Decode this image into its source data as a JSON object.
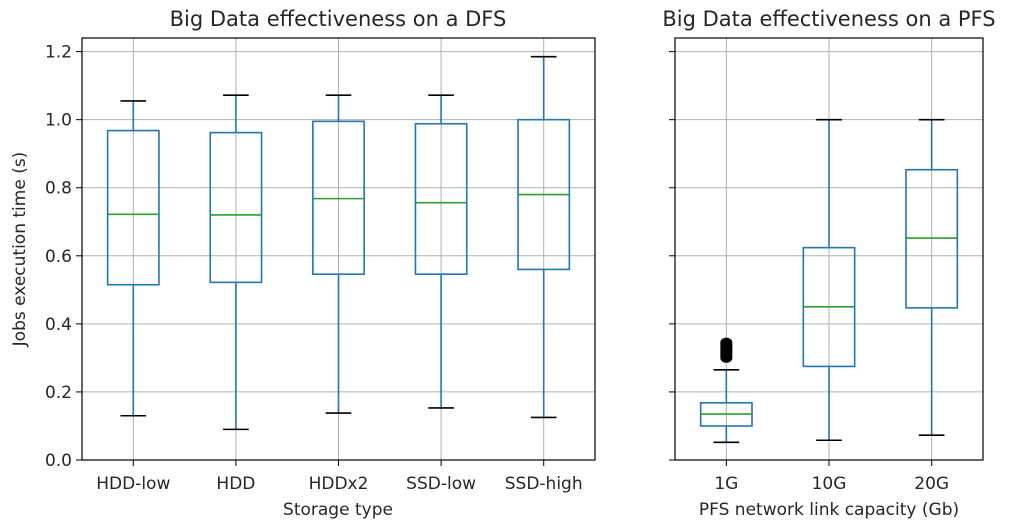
{
  "chart_data": [
    {
      "type": "box",
      "title": "Big Data effectiveness on a DFS",
      "xlabel": "Storage type",
      "ylabel": "Jobs execution time (s)",
      "ylim": [
        0,
        1.24
      ],
      "yticks": [
        "0.0",
        "0.2",
        "0.4",
        "0.6",
        "0.8",
        "1.0",
        "1.2"
      ],
      "grid": true,
      "categories": [
        "HDD-low",
        "HDD",
        "HDDx2",
        "SSD-low",
        "SSD-high"
      ],
      "boxes": [
        {
          "whisker_low": 0.13,
          "q1": 0.515,
          "median": 0.722,
          "q3": 0.968,
          "whisker_high": 1.055,
          "outliers": []
        },
        {
          "whisker_low": 0.09,
          "q1": 0.522,
          "median": 0.72,
          "q3": 0.962,
          "whisker_high": 1.072,
          "outliers": []
        },
        {
          "whisker_low": 0.138,
          "q1": 0.546,
          "median": 0.768,
          "q3": 0.995,
          "whisker_high": 1.072,
          "outliers": []
        },
        {
          "whisker_low": 0.153,
          "q1": 0.546,
          "median": 0.756,
          "q3": 0.988,
          "whisker_high": 1.072,
          "outliers": []
        },
        {
          "whisker_low": 0.125,
          "q1": 0.56,
          "median": 0.78,
          "q3": 1.0,
          "whisker_high": 1.185,
          "outliers": []
        }
      ]
    },
    {
      "type": "box",
      "title": "Big Data effectiveness on a PFS",
      "xlabel": "PFS network link capacity (Gb)",
      "ylabel": "",
      "ylim": [
        0,
        1.24
      ],
      "grid": true,
      "shared_y": true,
      "categories": [
        "1G",
        "10G",
        "20G"
      ],
      "boxes": [
        {
          "whisker_low": 0.052,
          "q1": 0.1,
          "median": 0.135,
          "q3": 0.168,
          "whisker_high": 0.265,
          "outliers": [
            0.3,
            0.305,
            0.31,
            0.315,
            0.32,
            0.325,
            0.33,
            0.335,
            0.34,
            0.345
          ]
        },
        {
          "whisker_low": 0.058,
          "q1": 0.275,
          "median": 0.45,
          "q3": 0.624,
          "whisker_high": 1.0,
          "outliers": []
        },
        {
          "whisker_low": 0.073,
          "q1": 0.447,
          "median": 0.652,
          "q3": 0.853,
          "whisker_high": 1.0,
          "outliers": []
        }
      ]
    }
  ],
  "colors": {
    "box": "#1f77b4",
    "median": "#2ca02c",
    "caps": "#000000",
    "grid": "#b0b0b0",
    "outliers": "#000000"
  }
}
